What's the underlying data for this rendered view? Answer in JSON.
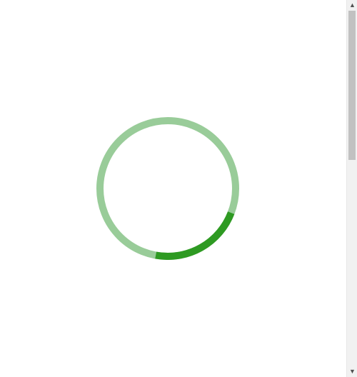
{
  "spinner": {
    "track_color": "#99cc99",
    "arc_color": "#2e9a22",
    "progress_fraction": 0.22
  },
  "scrollbar": {
    "up_icon": "triangle-up-icon",
    "down_icon": "triangle-down-icon",
    "up_glyph": "▲",
    "down_glyph": "▼"
  }
}
